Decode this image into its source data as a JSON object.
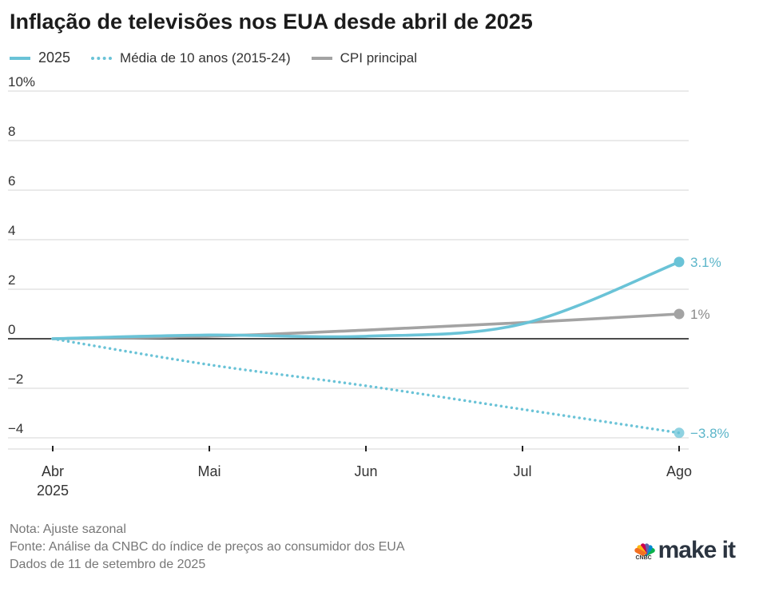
{
  "title": "Inflação de televisões nos EUA desde abril de 2025",
  "legend": [
    {
      "label": "2025",
      "style": "solid",
      "color": "#6ac3d7"
    },
    {
      "label": "Média de 10 anos (2015-24)",
      "style": "dotted",
      "color": "#6ac3d7"
    },
    {
      "label": "CPI principal",
      "style": "solid",
      "color": "#a3a3a3"
    }
  ],
  "chart_data": {
    "type": "line",
    "x": [
      "Abr",
      "Mai",
      "Jun",
      "Jul",
      "Ago"
    ],
    "x_sublabels": [
      "2025",
      "",
      "",
      "",
      ""
    ],
    "ylim": [
      -4.5,
      10
    ],
    "yticks": [
      10,
      8,
      6,
      4,
      2,
      0,
      -2,
      -4
    ],
    "ytick_labels": [
      "10%",
      "8",
      "6",
      "4",
      "2",
      "0",
      "−2",
      "−4"
    ],
    "grid": true,
    "series": [
      {
        "name": "2025",
        "color": "#6ac3d7",
        "style": "solid",
        "values": [
          0,
          0.15,
          0.1,
          0.6,
          3.1
        ],
        "end_label": "3.1%"
      },
      {
        "name": "Média de 10 anos (2015-24)",
        "color": "#6ac3d7",
        "style": "dotted",
        "values": [
          0,
          -1.05,
          -1.9,
          -2.85,
          -3.8
        ],
        "end_label": "−3.8%"
      },
      {
        "name": "CPI principal",
        "color": "#a3a3a3",
        "style": "solid",
        "values": [
          0,
          0.1,
          0.35,
          0.65,
          1.0
        ],
        "end_label": "1%"
      }
    ]
  },
  "footer": {
    "note": "Nota: Ajuste sazonal",
    "source": "Fonte: Análise da CNBC do índice de preços ao consumidor dos EUA",
    "date": "Dados de 11 de setembro de 2025"
  },
  "logo": {
    "brand_small": "CNBC",
    "text": "make it",
    "colors": [
      "#f37021",
      "#fcb711",
      "#cc004c",
      "#6460aa",
      "#0089d0",
      "#0db14b"
    ]
  }
}
